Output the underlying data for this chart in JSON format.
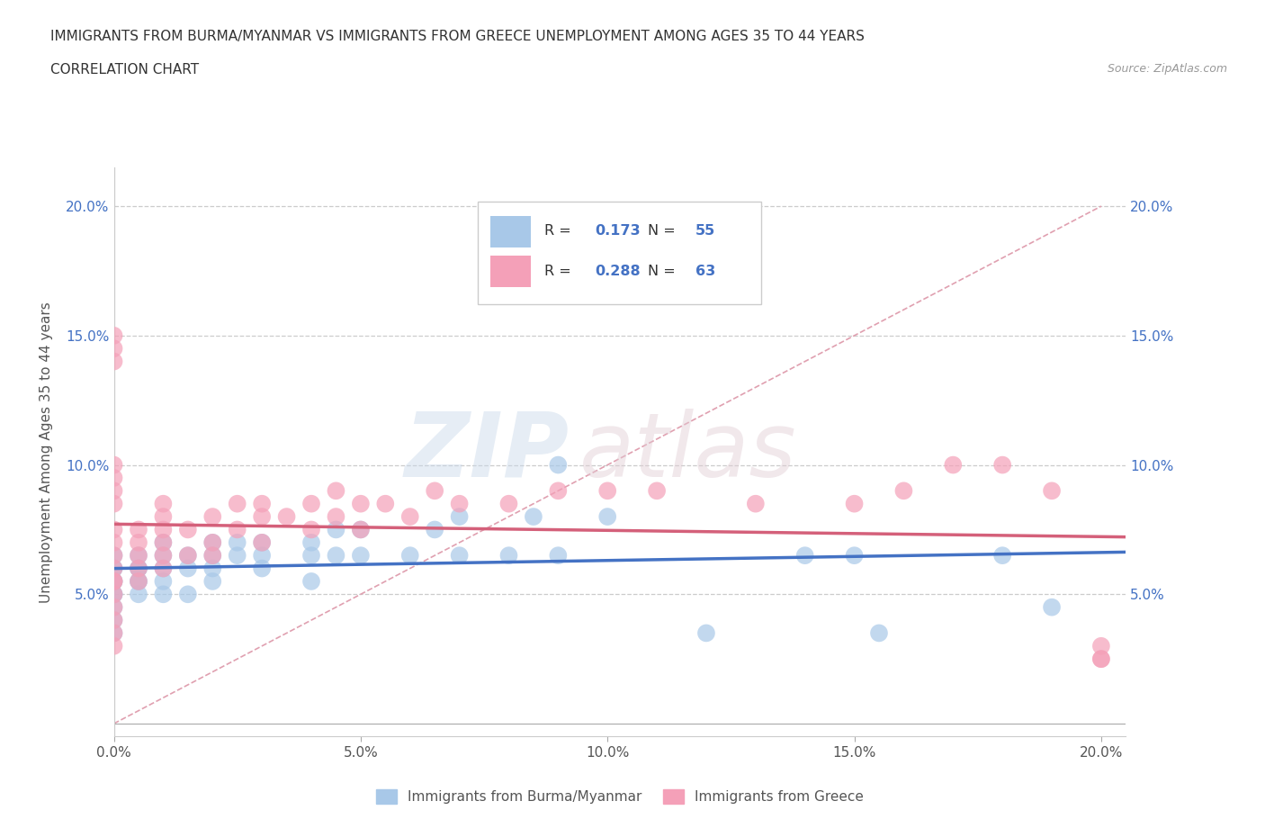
{
  "title_line1": "IMMIGRANTS FROM BURMA/MYANMAR VS IMMIGRANTS FROM GREECE UNEMPLOYMENT AMONG AGES 35 TO 44 YEARS",
  "title_line2": "CORRELATION CHART",
  "source_text": "Source: ZipAtlas.com",
  "ylabel": "Unemployment Among Ages 35 to 44 years",
  "xlim": [
    0.0,
    0.205
  ],
  "ylim": [
    -0.005,
    0.215
  ],
  "xticks": [
    0.0,
    0.05,
    0.1,
    0.15,
    0.2
  ],
  "yticks": [
    0.05,
    0.1,
    0.15,
    0.2
  ],
  "xtick_labels": [
    "0.0%",
    "5.0%",
    "10.0%",
    "15.0%",
    "20.0%"
  ],
  "ytick_labels": [
    "5.0%",
    "10.0%",
    "15.0%",
    "20.0%"
  ],
  "legend1_label": "Immigrants from Burma/Myanmar",
  "legend2_label": "Immigrants from Greece",
  "r1": 0.173,
  "n1": 55,
  "r2": 0.288,
  "n2": 63,
  "color_burma": "#a8c8e8",
  "color_greece": "#f4a0b8",
  "color_burma_line": "#4472c4",
  "color_greece_line": "#d4607a",
  "color_diagonal": "#e0a0b0",
  "burma_x": [
    0.0,
    0.0,
    0.0,
    0.0,
    0.0,
    0.0,
    0.0,
    0.0,
    0.0,
    0.0,
    0.005,
    0.005,
    0.005,
    0.005,
    0.005,
    0.005,
    0.01,
    0.01,
    0.01,
    0.01,
    0.01,
    0.015,
    0.015,
    0.015,
    0.02,
    0.02,
    0.02,
    0.02,
    0.025,
    0.025,
    0.03,
    0.03,
    0.03,
    0.04,
    0.04,
    0.04,
    0.045,
    0.045,
    0.05,
    0.05,
    0.06,
    0.065,
    0.07,
    0.07,
    0.08,
    0.085,
    0.09,
    0.09,
    0.1,
    0.12,
    0.14,
    0.15,
    0.155,
    0.18,
    0.19
  ],
  "burma_y": [
    0.05,
    0.055,
    0.06,
    0.065,
    0.055,
    0.05,
    0.06,
    0.045,
    0.04,
    0.035,
    0.06,
    0.055,
    0.065,
    0.05,
    0.06,
    0.055,
    0.065,
    0.055,
    0.07,
    0.06,
    0.05,
    0.065,
    0.06,
    0.05,
    0.065,
    0.06,
    0.07,
    0.055,
    0.065,
    0.07,
    0.065,
    0.07,
    0.06,
    0.065,
    0.07,
    0.055,
    0.065,
    0.075,
    0.065,
    0.075,
    0.065,
    0.075,
    0.065,
    0.08,
    0.065,
    0.08,
    0.065,
    0.1,
    0.08,
    0.035,
    0.065,
    0.065,
    0.035,
    0.065,
    0.045
  ],
  "greece_x": [
    0.0,
    0.0,
    0.0,
    0.0,
    0.0,
    0.0,
    0.0,
    0.0,
    0.0,
    0.0,
    0.0,
    0.0,
    0.0,
    0.0,
    0.0,
    0.0,
    0.0,
    0.0,
    0.005,
    0.005,
    0.005,
    0.005,
    0.005,
    0.01,
    0.01,
    0.01,
    0.01,
    0.01,
    0.01,
    0.015,
    0.015,
    0.02,
    0.02,
    0.02,
    0.025,
    0.025,
    0.03,
    0.03,
    0.03,
    0.035,
    0.04,
    0.04,
    0.045,
    0.045,
    0.05,
    0.05,
    0.055,
    0.06,
    0.065,
    0.07,
    0.08,
    0.09,
    0.1,
    0.11,
    0.13,
    0.15,
    0.16,
    0.17,
    0.18,
    0.19,
    0.2,
    0.2,
    0.2
  ],
  "greece_y": [
    0.05,
    0.055,
    0.06,
    0.065,
    0.07,
    0.075,
    0.045,
    0.04,
    0.035,
    0.03,
    0.085,
    0.09,
    0.095,
    0.1,
    0.14,
    0.145,
    0.15,
    0.055,
    0.06,
    0.065,
    0.07,
    0.075,
    0.055,
    0.06,
    0.065,
    0.07,
    0.075,
    0.08,
    0.085,
    0.065,
    0.075,
    0.065,
    0.07,
    0.08,
    0.075,
    0.085,
    0.07,
    0.08,
    0.085,
    0.08,
    0.075,
    0.085,
    0.08,
    0.09,
    0.075,
    0.085,
    0.085,
    0.08,
    0.09,
    0.085,
    0.085,
    0.09,
    0.09,
    0.09,
    0.085,
    0.085,
    0.09,
    0.1,
    0.1,
    0.09,
    0.025,
    0.03,
    0.025
  ]
}
